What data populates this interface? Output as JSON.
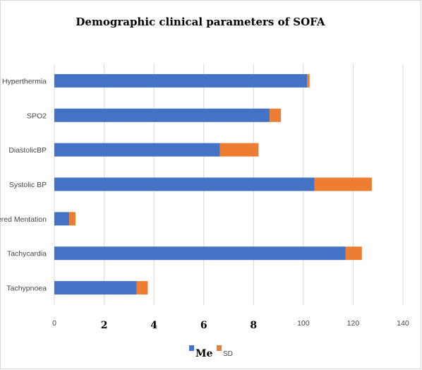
{
  "chart_data": {
    "type": "bar",
    "orientation": "horizontal",
    "stacked": true,
    "title": "Demographic clinical parameters of SOFA",
    "categories": [
      "Hyperthermia",
      "SPO2",
      "DiastolicBP",
      "Systolic BP",
      "Altered Mentation",
      "Tachycardia",
      "Tachypnoea"
    ],
    "series": [
      {
        "name": "Me",
        "color": "#4472C4",
        "values": [
          101.5,
          86.5,
          66.5,
          104.5,
          6,
          117,
          33
        ]
      },
      {
        "name": "SD",
        "color": "#ED7D31",
        "values": [
          1,
          4.5,
          15.5,
          23,
          2.5,
          6.5,
          4.5
        ]
      }
    ],
    "x_ticks": [
      "0",
      "2",
      "4",
      "6",
      "8",
      "100",
      "120",
      "140"
    ],
    "xlim": [
      0,
      140
    ],
    "grid": true,
    "legend_position": "bottom"
  }
}
